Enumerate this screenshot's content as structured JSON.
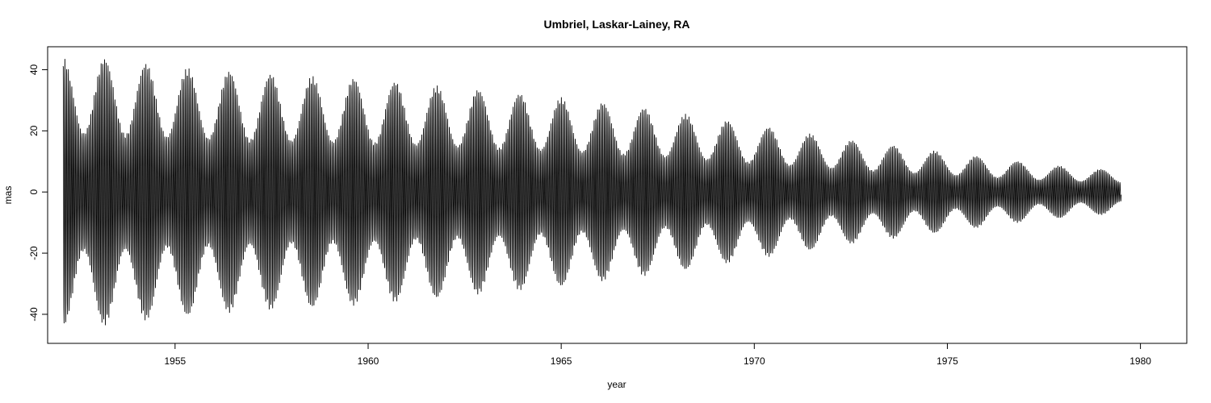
{
  "chart_data": {
    "type": "line",
    "title": "Umbriel, Laskar-Lainey, RA",
    "xlabel": "year",
    "ylabel": "mas",
    "xlim": [
      1951.7,
      1981.2
    ],
    "ylim": [
      -49.5,
      47.5
    ],
    "x_ticks": [
      1955,
      1960,
      1965,
      1970,
      1975,
      1980
    ],
    "y_ticks": [
      -40,
      -20,
      0,
      20,
      40
    ],
    "grid": false,
    "legend": "none",
    "line_color": "#000000",
    "series": [
      {
        "x_start": 1952.1,
        "x_end": 1979.5,
        "cycles_per_year": 22.4,
        "envelope_years": [
          1952.1,
          1953.0,
          1955.0,
          1957.0,
          1960.0,
          1962.5,
          1965.0,
          1967.5,
          1970.0,
          1972.5,
          1975.0,
          1977.5,
          1979.5
        ],
        "envelope_mas": [
          44,
          44,
          41,
          39,
          37,
          34,
          31,
          27,
          22,
          17,
          13,
          9,
          7
        ]
      }
    ]
  }
}
